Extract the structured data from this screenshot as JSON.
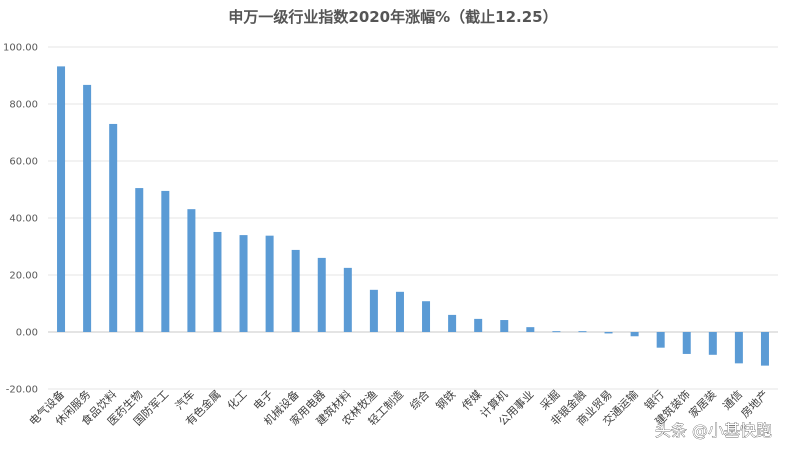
{
  "chart_data": {
    "type": "bar",
    "title": "申万一级行业指数2020年涨幅%（截止12.25）",
    "xlabel": "",
    "ylabel": "",
    "ylim": [
      -20,
      100
    ],
    "yticks": [
      "100.00",
      "80.00",
      "60.00",
      "40.00",
      "20.00",
      "0.00",
      "-20.00"
    ],
    "grid": true,
    "bar_color": "#5B9BD5",
    "categories": [
      "电气设备",
      "休闲服务",
      "食品饮料",
      "医药生物",
      "国防军工",
      "汽车",
      "有色金属",
      "化工",
      "电子",
      "机械设备",
      "家用电器",
      "建筑材料",
      "农林牧渔",
      "轻工制造",
      "综合",
      "钢铁",
      "传媒",
      "计算机",
      "公用事业",
      "采掘",
      "非银金融",
      "商业贸易",
      "交通运输",
      "银行",
      "建筑装饰",
      "家居装",
      "通信",
      "房地产"
    ],
    "values": [
      93.2,
      86.7,
      73.0,
      50.5,
      49.5,
      43.1,
      35.1,
      34.0,
      33.8,
      28.8,
      26.0,
      22.5,
      14.8,
      14.1,
      10.8,
      6.0,
      4.6,
      4.2,
      1.7,
      0.3,
      0.3,
      -0.5,
      -1.5,
      -5.5,
      -7.7,
      -8.0,
      -11.0,
      -11.8
    ]
  },
  "watermark": "头条 @小基快跑"
}
